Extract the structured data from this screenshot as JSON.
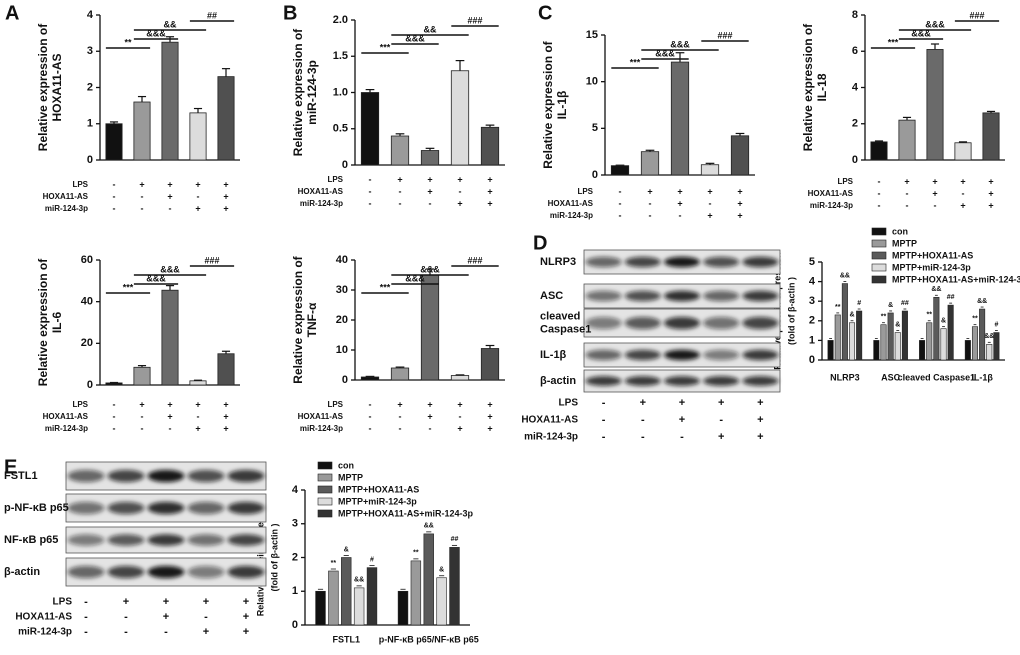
{
  "chart_data": [
    {
      "type": "bar",
      "panel": "A",
      "ylabel": [
        "Relative expression of",
        "HOXA11-AS"
      ],
      "values": [
        1.0,
        1.6,
        3.25,
        1.3,
        2.3
      ],
      "errors": [
        0.05,
        0.15,
        0.15,
        0.12,
        0.22
      ],
      "colors": [
        "#111111",
        "#9a9a9a",
        "#6a6a6a",
        "#dcdcdc",
        "#505050"
      ],
      "ylim": [
        0,
        4
      ],
      "yticks": [
        0,
        1,
        2,
        3,
        4
      ],
      "annotations": [
        "**",
        "&&&",
        "&&",
        "##"
      ],
      "conditions": [
        {
          "label": "LPS",
          "marks": [
            "-",
            "+",
            "+",
            "+",
            "+"
          ]
        },
        {
          "label": "HOXA11-AS",
          "marks": [
            "-",
            "-",
            "+",
            "-",
            "+"
          ]
        },
        {
          "label": "miR-124-3p",
          "marks": [
            "-",
            "-",
            "-",
            "+",
            "+"
          ]
        }
      ]
    },
    {
      "type": "bar",
      "panel": "B",
      "ylabel": [
        "Relative expression of",
        "miR-124-3p"
      ],
      "values": [
        1.0,
        0.4,
        0.2,
        1.3,
        0.52
      ],
      "errors": [
        0.04,
        0.03,
        0.03,
        0.14,
        0.03
      ],
      "colors": [
        "#111111",
        "#9a9a9a",
        "#6a6a6a",
        "#dcdcdc",
        "#505050"
      ],
      "ylim": [
        0,
        2
      ],
      "yticks": [
        0,
        0.5,
        {
          "value": 1,
          "label": "1.0"
        },
        1.5,
        {
          "value": 2,
          "label": "2.0"
        }
      ],
      "annotations": [
        "***",
        "&&&",
        "&&",
        "###"
      ],
      "conditions": [
        {
          "label": "LPS",
          "marks": [
            "-",
            "+",
            "+",
            "+",
            "+"
          ]
        },
        {
          "label": "HOXA11-AS",
          "marks": [
            "-",
            "-",
            "+",
            "-",
            "+"
          ]
        },
        {
          "label": "miR-124-3p",
          "marks": [
            "-",
            "-",
            "-",
            "+",
            "+"
          ]
        }
      ]
    },
    {
      "type": "bar",
      "panel": "C",
      "ylabel": [
        "Relative expression of",
        "IL-1β"
      ],
      "values": [
        1.0,
        2.5,
        12.1,
        1.1,
        4.2
      ],
      "errors": [
        0.05,
        0.15,
        1.0,
        0.15,
        0.25
      ],
      "colors": [
        "#111111",
        "#9a9a9a",
        "#6a6a6a",
        "#dcdcdc",
        "#505050"
      ],
      "ylim": [
        0,
        15
      ],
      "yticks": [
        0,
        5,
        10,
        15
      ],
      "annotations": [
        "***",
        "&&&",
        "&&&",
        "###"
      ],
      "conditions": [
        {
          "label": "LPS",
          "marks": [
            "-",
            "+",
            "+",
            "+",
            "+"
          ]
        },
        {
          "label": "HOXA11-AS",
          "marks": [
            "-",
            "-",
            "+",
            "-",
            "+"
          ]
        },
        {
          "label": "miR-124-3p",
          "marks": [
            "-",
            "-",
            "-",
            "+",
            "+"
          ]
        }
      ]
    },
    {
      "type": "bar",
      "ylabel": [
        "Relative expression of",
        "IL-18"
      ],
      "values": [
        1.0,
        2.2,
        6.1,
        0.95,
        2.6
      ],
      "errors": [
        0.05,
        0.15,
        0.3,
        0.05,
        0.08
      ],
      "colors": [
        "#111111",
        "#9a9a9a",
        "#6a6a6a",
        "#dcdcdc",
        "#505050"
      ],
      "ylim": [
        0,
        8
      ],
      "yticks": [
        0,
        2,
        4,
        6,
        8
      ],
      "annotations": [
        "***",
        "&&&",
        "&&&",
        "###"
      ],
      "conditions": [
        {
          "label": "LPS",
          "marks": [
            "-",
            "+",
            "+",
            "+",
            "+"
          ]
        },
        {
          "label": "HOXA11-AS",
          "marks": [
            "-",
            "-",
            "+",
            "-",
            "+"
          ]
        },
        {
          "label": "miR-124-3p",
          "marks": [
            "-",
            "-",
            "-",
            "+",
            "+"
          ]
        }
      ]
    },
    {
      "type": "bar",
      "ylabel": [
        "Relative expression of",
        "IL-6"
      ],
      "values": [
        1.0,
        8.5,
        45.5,
        2.0,
        15.0
      ],
      "errors": [
        0.2,
        0.8,
        2.2,
        0.3,
        1.2
      ],
      "colors": [
        "#111111",
        "#9a9a9a",
        "#6a6a6a",
        "#dcdcdc",
        "#505050"
      ],
      "ylim": [
        0,
        60
      ],
      "yticks": [
        0,
        20,
        40,
        60
      ],
      "annotations": [
        "***",
        "&&&",
        "&&&",
        "###"
      ],
      "conditions": [
        {
          "label": "LPS",
          "marks": [
            "-",
            "+",
            "+",
            "+",
            "+"
          ]
        },
        {
          "label": "HOXA11-AS",
          "marks": [
            "-",
            "-",
            "+",
            "-",
            "+"
          ]
        },
        {
          "label": "miR-124-3p",
          "marks": [
            "-",
            "-",
            "-",
            "+",
            "+"
          ]
        }
      ]
    },
    {
      "type": "bar",
      "ylabel": [
        "Relative expression of",
        "TNF-α"
      ],
      "values": [
        1.0,
        4.0,
        35.0,
        1.5,
        10.5
      ],
      "errors": [
        0.2,
        0.3,
        2.0,
        0.2,
        1.0
      ],
      "colors": [
        "#111111",
        "#9a9a9a",
        "#6a6a6a",
        "#dcdcdc",
        "#505050"
      ],
      "ylim": [
        0,
        40
      ],
      "yticks": [
        0,
        10,
        20,
        30,
        40
      ],
      "annotations": [
        "***",
        "&&&",
        "&&&",
        "###"
      ],
      "conditions": [
        {
          "label": "LPS",
          "marks": [
            "-",
            "+",
            "+",
            "+",
            "+"
          ]
        },
        {
          "label": "HOXA11-AS",
          "marks": [
            "-",
            "-",
            "+",
            "-",
            "+"
          ]
        },
        {
          "label": "miR-124-3p",
          "marks": [
            "-",
            "-",
            "-",
            "+",
            "+"
          ]
        }
      ]
    },
    {
      "type": "grouped",
      "ylabel": [
        "Relative protein expression",
        "(fold of β-actin )"
      ],
      "categories": [
        "NLRP3",
        "ASC",
        "cleaved Caspase1",
        "IL-1β"
      ],
      "ylim": [
        0,
        5
      ],
      "yticks": [
        0,
        1,
        2,
        3,
        4,
        5
      ],
      "series": [
        {
          "name": "con",
          "color": "#111111",
          "values": [
            1.0,
            1.0,
            1.0,
            1.0
          ],
          "marks": [
            null,
            null,
            null,
            null
          ]
        },
        {
          "name": "MPTP",
          "color": "#9a9a9a",
          "values": [
            2.3,
            1.8,
            1.9,
            1.7
          ],
          "marks": [
            "**",
            "**",
            "**",
            "**"
          ]
        },
        {
          "name": "MPTP+HOXA11-AS",
          "color": "#5a5a5a",
          "values": [
            3.9,
            2.4,
            3.2,
            2.6
          ],
          "marks": [
            "&&",
            "&",
            "&&",
            "&&"
          ]
        },
        {
          "name": "MPTP+miR-124-3p",
          "color": "#dcdcdc",
          "values": [
            1.9,
            1.4,
            1.6,
            0.8
          ],
          "marks": [
            "&",
            "&",
            "&",
            "&&"
          ]
        },
        {
          "name": "MPTP+HOXA11-AS+miR-124-3p",
          "color": "#333333",
          "values": [
            2.5,
            2.5,
            2.8,
            1.4
          ],
          "marks": [
            "#",
            "##",
            "##",
            "#"
          ]
        }
      ]
    },
    {
      "type": "grouped",
      "ylabel": [
        "Relative protein expression",
        "(fold of β-actin )"
      ],
      "categories": [
        "FSTL1",
        "p-NF-κB p65/NF-κB p65"
      ],
      "ylim": [
        0,
        4
      ],
      "yticks": [
        0,
        1,
        2,
        3,
        4
      ],
      "series": [
        {
          "name": "con",
          "color": "#111111",
          "values": [
            1.0,
            1.0
          ],
          "marks": [
            null,
            null
          ]
        },
        {
          "name": "MPTP",
          "color": "#9a9a9a",
          "values": [
            1.6,
            1.9
          ],
          "marks": [
            "**",
            "**"
          ]
        },
        {
          "name": "MPTP+HOXA11-AS",
          "color": "#5a5a5a",
          "values": [
            2.0,
            2.7
          ],
          "marks": [
            "&",
            "&&"
          ]
        },
        {
          "name": "MPTP+miR-124-3p",
          "color": "#dcdcdc",
          "values": [
            1.1,
            1.4
          ],
          "marks": [
            "&&",
            "&"
          ]
        },
        {
          "name": "MPTP+HOXA11-AS+miR-124-3p",
          "color": "#333333",
          "values": [
            1.7,
            2.3
          ],
          "marks": [
            "#",
            "##"
          ]
        }
      ]
    }
  ],
  "blots": [
    {
      "panel": "D",
      "bands": [
        [
          "NLRP3"
        ],
        [
          "ASC"
        ],
        [
          "cleaved",
          "Caspase1"
        ],
        [
          "IL-1β"
        ],
        [
          "β-actin"
        ]
      ],
      "conditions": [
        {
          "label": "LPS",
          "marks": [
            "-",
            "+",
            "+",
            "+",
            "+"
          ]
        },
        {
          "label": "HOXA11-AS",
          "marks": [
            "-",
            "-",
            "+",
            "-",
            "+"
          ]
        },
        {
          "label": "miR-124-3p",
          "marks": [
            "-",
            "-",
            "-",
            "+",
            "+"
          ]
        }
      ]
    },
    {
      "panel": "E",
      "bands": [
        [
          "FSTL1"
        ],
        [
          "p-NF-κB p65"
        ],
        [
          "NF-κB p65"
        ],
        [
          "β-actin"
        ]
      ],
      "conditions": [
        {
          "label": "LPS",
          "marks": [
            "-",
            "+",
            "+",
            "+",
            "+"
          ]
        },
        {
          "label": "HOXA11-AS",
          "marks": [
            "-",
            "-",
            "+",
            "-",
            "+"
          ]
        },
        {
          "label": "miR-124-3p",
          "marks": [
            "-",
            "-",
            "-",
            "+",
            "+"
          ]
        }
      ]
    }
  ]
}
